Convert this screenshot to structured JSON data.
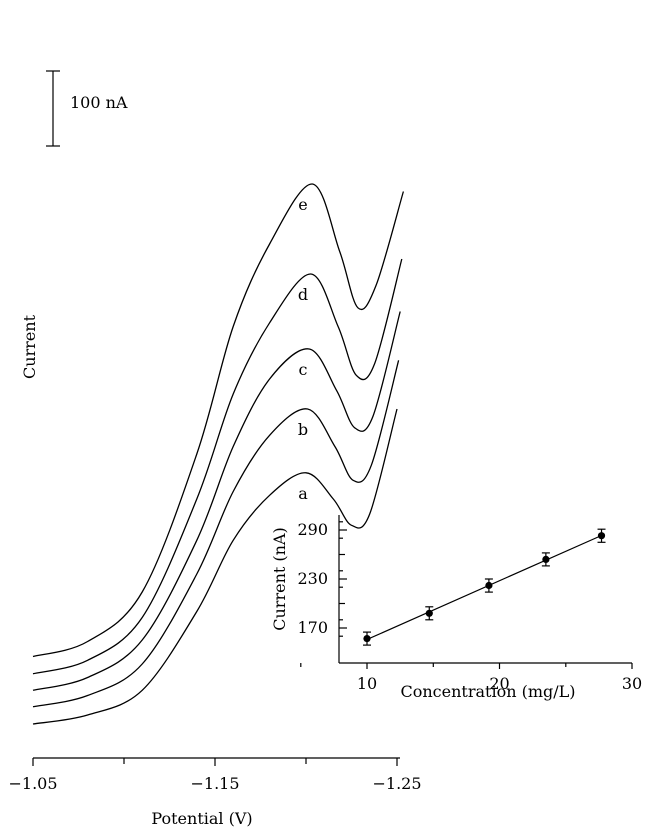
{
  "chart_data": [
    {
      "type": "line",
      "xlabel": "Potential (V)",
      "ylabel": "Current",
      "x_ticks": [
        "−1.05",
        "−1.15",
        "−1.25"
      ],
      "xlim": [
        -1.05,
        -1.25
      ],
      "peak_potential": -1.2,
      "scale_bar_label": "100 nA",
      "scale_bar_value": 100,
      "series": [
        {
          "name": "a",
          "x": [
            -1.05,
            -1.08,
            -1.11,
            -1.14,
            -1.16,
            -1.18,
            -1.2,
            -1.215,
            -1.225,
            -1.235,
            -1.25
          ],
          "y": [
            0,
            12,
            45,
            150,
            245,
            305,
            335,
            300,
            265,
            280,
            420
          ]
        },
        {
          "name": "b",
          "x": [
            -1.05,
            -1.08,
            -1.11,
            -1.14,
            -1.16,
            -1.18,
            -1.2,
            -1.215,
            -1.225,
            -1.235,
            -1.25
          ],
          "y": [
            23,
            38,
            80,
            200,
            310,
            385,
            420,
            370,
            325,
            345,
            485
          ]
        },
        {
          "name": "c",
          "x": [
            -1.05,
            -1.08,
            -1.11,
            -1.14,
            -1.16,
            -1.18,
            -1.2,
            -1.215,
            -1.225,
            -1.235,
            -1.25
          ],
          "y": [
            45,
            62,
            112,
            245,
            370,
            460,
            500,
            445,
            395,
            410,
            550
          ]
        },
        {
          "name": "d",
          "x": [
            -1.05,
            -1.08,
            -1.11,
            -1.14,
            -1.16,
            -1.18,
            -1.2,
            -1.215,
            -1.225,
            -1.235,
            -1.25
          ],
          "y": [
            67,
            85,
            142,
            300,
            440,
            535,
            600,
            530,
            465,
            480,
            620
          ]
        },
        {
          "name": "e",
          "x": [
            -1.05,
            -1.08,
            -1.11,
            -1.14,
            -1.16,
            -1.18,
            -1.2,
            -1.215,
            -1.225,
            -1.235,
            -1.25
          ],
          "y": [
            90,
            110,
            176,
            360,
            530,
            640,
            720,
            630,
            555,
            585,
            710
          ]
        }
      ]
    },
    {
      "type": "scatter",
      "xlabel": "Concentration (mg/L)",
      "ylabel": "Current (nA)",
      "x_ticks": [
        "10",
        "20",
        "30"
      ],
      "y_ticks": [
        "170",
        "230",
        "290"
      ],
      "xlim": [
        5,
        30
      ],
      "ylim": [
        145,
        305
      ],
      "fit_line": true,
      "x": [
        10,
        14.7,
        19.2,
        23.5,
        27.7
      ],
      "y": [
        157,
        188,
        222,
        254,
        283
      ],
      "error": [
        8,
        8,
        8,
        8,
        8
      ]
    }
  ]
}
